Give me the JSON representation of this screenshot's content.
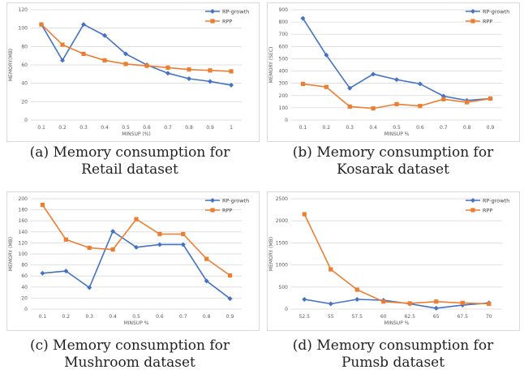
{
  "colors": {
    "rp_growth": "#4472c4",
    "rpp": "#ed7d31"
  },
  "legend": {
    "rp_growth": "RP-growth",
    "rpp": "RPP"
  },
  "captions": [
    {
      "line1": "(a) Memory consumption for",
      "line2": "Retail dataset"
    },
    {
      "line1": "(b) Memory consumption for",
      "line2": "Kosarak dataset"
    },
    {
      "line1": "(c) Memory consumption for",
      "line2": "Mushroom dataset"
    },
    {
      "line1": "(d) Memory consumption for",
      "line2": "Pumsb dataset"
    }
  ],
  "chart_data": [
    {
      "type": "line",
      "title": "",
      "xlabel": "MINSUP (%)",
      "ylabel": "MEMORY(MB)",
      "categories": [
        "0.1",
        "0.2",
        "0.3",
        "0.4",
        "0.5",
        "0.6",
        "0.7",
        "0.8",
        "0.9",
        "1"
      ],
      "ylim": [
        0,
        120
      ],
      "yticks": [
        0,
        20,
        40,
        60,
        80,
        100,
        120
      ],
      "series": [
        {
          "name": "RP-growth",
          "values": [
            104,
            65,
            104,
            92,
            72,
            60,
            51,
            45,
            42,
            38
          ]
        },
        {
          "name": "RPP",
          "values": [
            104,
            82,
            72,
            65,
            61,
            59,
            57,
            55,
            54,
            53
          ]
        }
      ]
    },
    {
      "type": "line",
      "title": "",
      "xlabel": "MINSUP %",
      "ylabel": "MEMORY (SEC)",
      "categories": [
        "0.1",
        "0.2",
        "0.3",
        "0.4",
        "0.5",
        "0.6",
        "0.7",
        "0.8",
        "0.9"
      ],
      "ylim": [
        0,
        900
      ],
      "yticks": [
        0,
        100,
        200,
        300,
        400,
        500,
        600,
        700,
        800,
        900
      ],
      "series": [
        {
          "name": "RP-growth",
          "values": [
            830,
            530,
            260,
            375,
            330,
            295,
            195,
            160,
            175
          ]
        },
        {
          "name": "RPP",
          "values": [
            295,
            270,
            110,
            95,
            130,
            115,
            170,
            145,
            175
          ]
        }
      ]
    },
    {
      "type": "line",
      "title": "",
      "xlabel": "MINSUP %",
      "ylabel": "MEMORY (MB)",
      "categories": [
        "0.1",
        "0.2",
        "0.3",
        "0.4",
        "0.5",
        "0.6",
        "0.7",
        "0.8",
        "0.9"
      ],
      "ylim": [
        0,
        200
      ],
      "yticks": [
        0,
        20,
        40,
        60,
        80,
        100,
        120,
        140,
        160,
        180,
        200
      ],
      "series": [
        {
          "name": "RP-growth",
          "values": [
            65,
            69,
            39,
            141,
            112,
            117,
            117,
            51,
            19
          ]
        },
        {
          "name": "RPP",
          "values": [
            189,
            126,
            111,
            108,
            163,
            136,
            136,
            91,
            61
          ]
        }
      ]
    },
    {
      "type": "line",
      "title": "",
      "xlabel": "MINSUP %",
      "ylabel": "MEMORY (MB)",
      "categories": [
        "52.5",
        "55",
        "57.5",
        "60",
        "62.5",
        "65",
        "67.5",
        "70"
      ],
      "ylim": [
        0,
        2500
      ],
      "yticks": [
        0,
        500,
        1000,
        1500,
        2000,
        2500
      ],
      "series": [
        {
          "name": "RP-growth",
          "values": [
            220,
            120,
            220,
            200,
            120,
            20,
            90,
            140
          ]
        },
        {
          "name": "RPP",
          "values": [
            2150,
            900,
            440,
            170,
            130,
            170,
            140,
            120
          ]
        }
      ]
    }
  ]
}
